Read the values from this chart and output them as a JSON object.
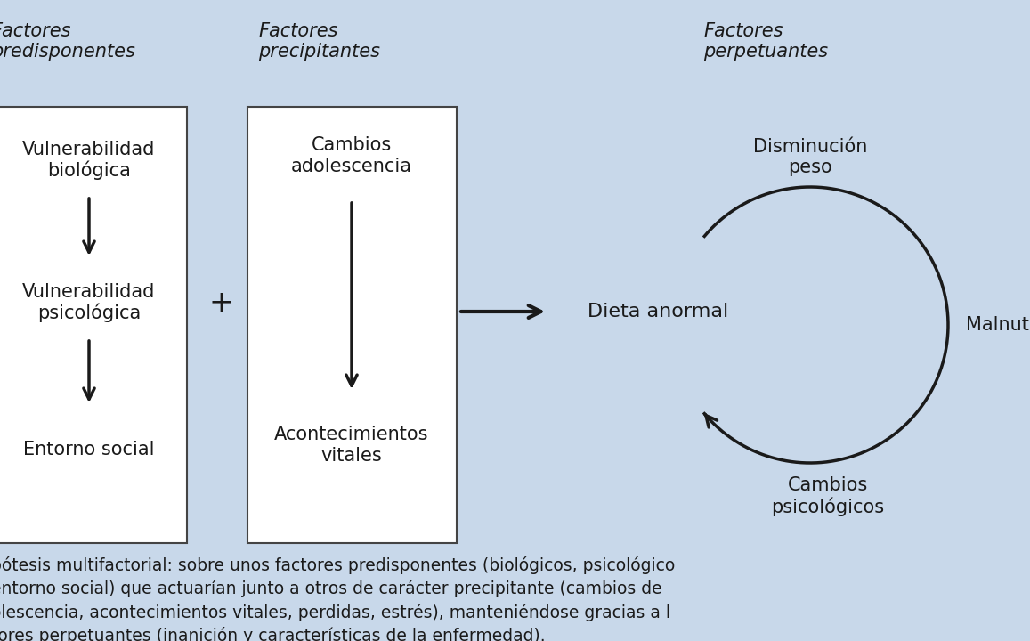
{
  "bg_color": "#c8d8ea",
  "box_color": "#ffffff",
  "box_edge_color": "#444444",
  "arrow_color": "#1a1a1a",
  "text_color": "#1a1a1a",
  "header_color": "#1a1a1a",
  "col1_header": "Factores\npredisponentes",
  "col2_header": "Factores\nprecipitantes",
  "col3_header": "Factores\nperpetuantes",
  "col1_items": [
    "Vulnerabilidad\nbiológica",
    "Vulnerabilidad\npsicológica",
    "Entorno social"
  ],
  "col2_items": [
    "Cambios\nadolescencia",
    "Acontecimientos\nvitales"
  ],
  "center_label": "Dieta anormal",
  "cycle_labels": [
    "Disminución\npeso",
    "Malnutrición",
    "Cambios\npsicológicos"
  ],
  "footer_line1": "pótesis multifactorial: sobre unos factores predisponentes (biológicos, psicológico",
  "footer_line2": "entorno social) que actuarían junto a otros de carácter precipitante (cambios de",
  "footer_line3": "olescencia, acontecimientos vitales, perdidas, estrés), manteniéndose gracias a l",
  "footer_line4": "tores perpetuantes (inanición y características de la enfermedad)."
}
